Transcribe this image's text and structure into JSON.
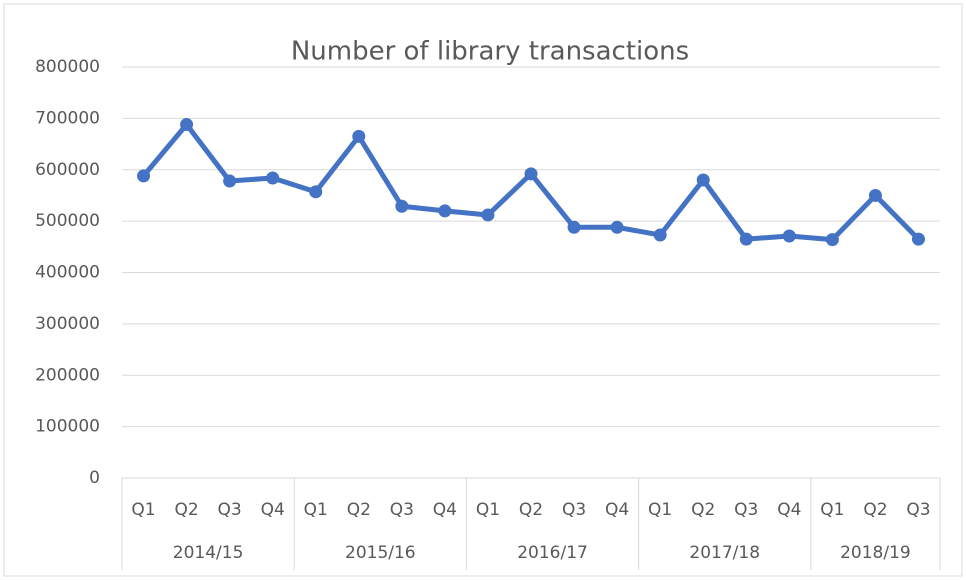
{
  "chart_data": {
    "type": "line",
    "title": "Number of library transactions",
    "category_groups": [
      {
        "name": "2014/15",
        "categories": [
          "Q1",
          "Q2",
          "Q3",
          "Q4"
        ]
      },
      {
        "name": "2015/16",
        "categories": [
          "Q1",
          "Q2",
          "Q3",
          "Q4"
        ]
      },
      {
        "name": "2016/17",
        "categories": [
          "Q1",
          "Q2",
          "Q3",
          "Q4"
        ]
      },
      {
        "name": "2017/18",
        "categories": [
          "Q1",
          "Q2",
          "Q3",
          "Q4"
        ]
      },
      {
        "name": "2018/19",
        "categories": [
          "Q1",
          "Q2",
          "Q3"
        ]
      }
    ],
    "values": [
      588000,
      688000,
      578000,
      584000,
      557000,
      665000,
      529000,
      520000,
      512000,
      592000,
      488000,
      488000,
      473000,
      580000,
      465000,
      471000,
      464000,
      550000,
      465000
    ],
    "color": "#4472c4",
    "ylim": [
      0,
      800000
    ],
    "yticks": [
      0,
      100000,
      200000,
      300000,
      400000,
      500000,
      600000,
      700000,
      800000
    ],
    "grid": true
  }
}
